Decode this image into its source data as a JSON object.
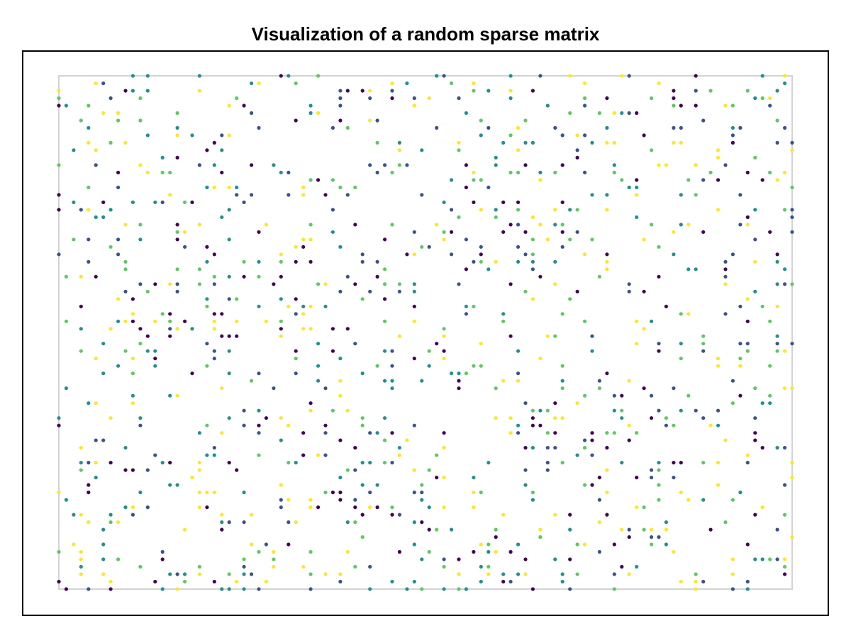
{
  "chart_data": {
    "type": "scatter",
    "title": "Visualization of a random sparse matrix",
    "xlabel": "",
    "ylabel": "",
    "grid": false,
    "legend": "none",
    "n_cols": 100,
    "n_rows": 70,
    "density": 0.15,
    "seed": 20240611,
    "colormap": [
      "#440154",
      "#3b528b",
      "#21918c",
      "#5ec962",
      "#fde725"
    ],
    "frame_color": "#d3d3d3",
    "border_color": "#000000"
  }
}
